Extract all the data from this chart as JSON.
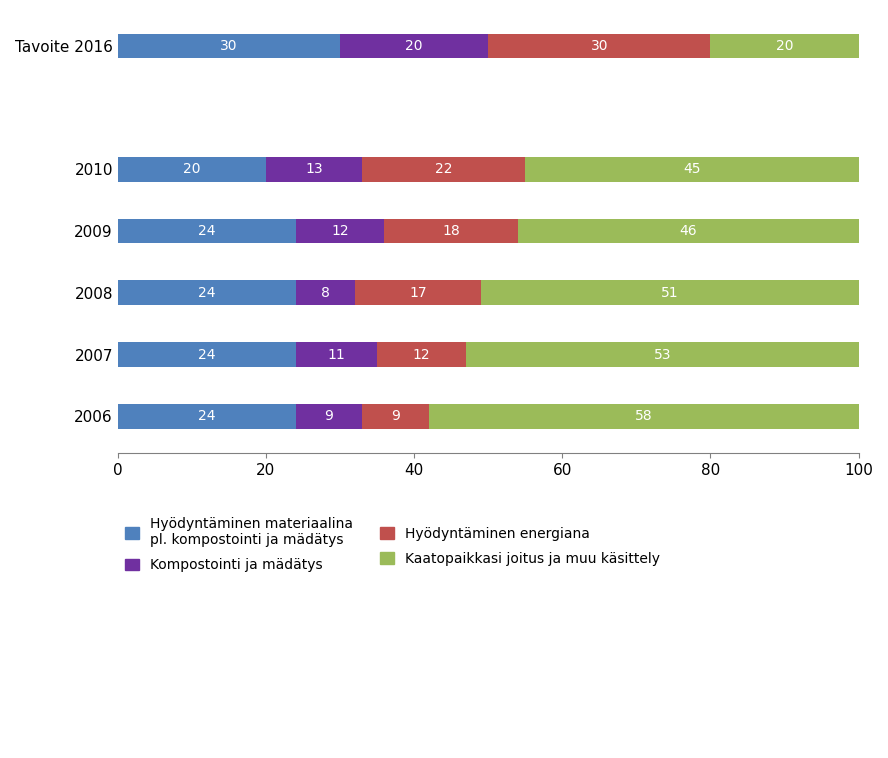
{
  "categories": [
    "Tavoite 2016",
    "",
    "2010",
    "2009",
    "2008",
    "2007",
    "2006"
  ],
  "series": [
    {
      "label": "Hyödyntäminen materiaalina\npl. kompostointi ja mädätys",
      "color": "#4F81BD",
      "values": [
        30,
        0,
        20,
        24,
        24,
        24,
        24
      ]
    },
    {
      "label": "Kompostointi ja mädätys",
      "color": "#7030A0",
      "values": [
        20,
        0,
        13,
        12,
        8,
        11,
        9
      ]
    },
    {
      "label": "Hyödyntäminen energiana",
      "color": "#C0504D",
      "values": [
        30,
        0,
        22,
        18,
        17,
        12,
        9
      ]
    },
    {
      "label": "Kaatopaikkasi joitus ja muu käsittely",
      "color": "#9BBB59",
      "values": [
        20,
        0,
        45,
        46,
        51,
        53,
        58
      ]
    }
  ],
  "xlim": [
    0,
    100
  ],
  "xticks": [
    0,
    20,
    40,
    60,
    80,
    100
  ],
  "bar_label_fontsize": 10,
  "legend_fontsize": 10,
  "tick_fontsize": 11,
  "background_color": "#FFFFFF",
  "plot_bg_color": "#FFFFFF",
  "bar_height": 0.4
}
